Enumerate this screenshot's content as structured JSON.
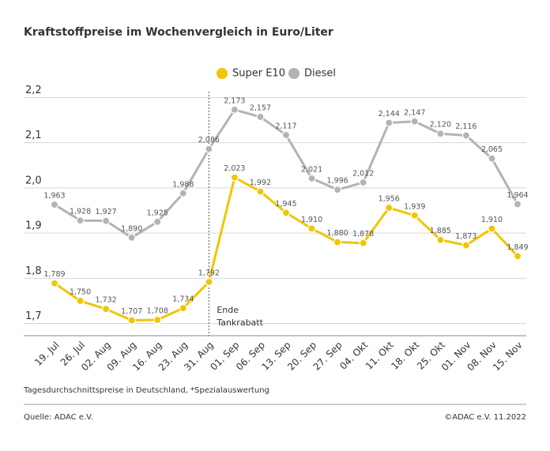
{
  "chart_data": {
    "type": "line",
    "title": "Kraftstoffpreise im Wochenvergleich in Euro/Liter",
    "categories": [
      "19. Jul",
      "26. Jul",
      "02. Aug",
      "09. Aug",
      "16. Aug",
      "23. Aug",
      "31. Aug",
      "01. Sep",
      "06. Sep",
      "13. Sep",
      "20. Sep",
      "27. Sep",
      "04. Okt",
      "11. Okt",
      "18. Okt",
      "25. Okt",
      "01. Nov",
      "08. Nov",
      "15. Nov"
    ],
    "series": [
      {
        "name": "Super E10",
        "color": "#f2c500",
        "values": [
          1.789,
          1.75,
          1.732,
          1.707,
          1.708,
          1.734,
          1.792,
          2.023,
          1.992,
          1.945,
          1.91,
          1.88,
          1.878,
          1.956,
          1.939,
          1.885,
          1.873,
          1.91,
          1.849
        ],
        "value_labels": [
          "1,789",
          "1,750",
          "1,732",
          "1,707",
          "1,708",
          "1,734",
          "1,792",
          "2,023",
          "1,992",
          "1,945",
          "1,910",
          "1,880",
          "1,878",
          "1,956",
          "1,939",
          "1,885",
          "1,873",
          "1,910",
          "1,849"
        ]
      },
      {
        "name": "Diesel",
        "color": "#b3b3b3",
        "values": [
          1.963,
          1.928,
          1.927,
          1.89,
          1.925,
          1.988,
          2.086,
          2.173,
          2.157,
          2.117,
          2.021,
          1.996,
          2.012,
          2.144,
          2.147,
          2.12,
          2.116,
          2.065,
          1.964
        ],
        "value_labels": [
          "1,963",
          "1,928",
          "1,927",
          "1,890",
          "1,925",
          "1,988",
          "2,086",
          "2,173",
          "2,157",
          "2,117",
          "2,021",
          "1,996",
          "2,012",
          "2,144",
          "2,147",
          "2,120",
          "2,116",
          "2,065",
          "1,964"
        ]
      }
    ],
    "ylim": [
      1.68,
      2.22
    ],
    "yticks": [
      {
        "value": 1.7,
        "label": "1,7"
      },
      {
        "value": 1.8,
        "label": "1,8"
      },
      {
        "value": 1.9,
        "label": "1,9"
      },
      {
        "value": 2.0,
        "label": "2,0"
      },
      {
        "value": 2.1,
        "label": "2,1"
      },
      {
        "value": 2.2,
        "label": "2,2"
      }
    ],
    "grid": true,
    "annotation": {
      "x": "31. Aug",
      "lines": [
        "Ende",
        "Tankrabatt"
      ]
    },
    "footnote": "Tagesdurchschnittspreise in Deutschland, *Spezialauswertung",
    "source": "Quelle: ADAC e.V.",
    "copyright": "©ADAC e.V.  11.2022"
  }
}
